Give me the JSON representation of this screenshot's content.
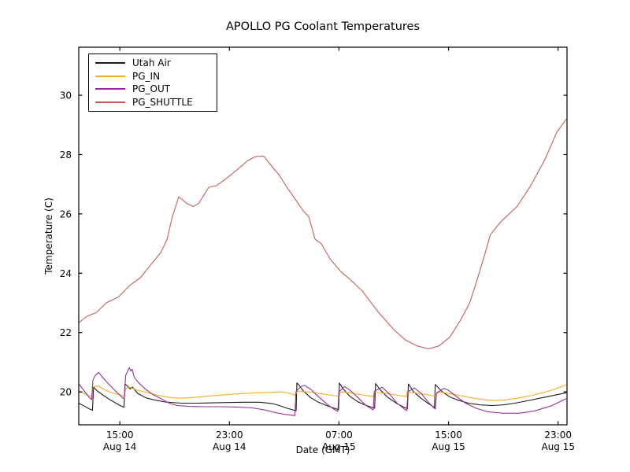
{
  "chart_data": {
    "type": "line",
    "title": "APOLLO PG Coolant Temperatures",
    "xlabel": "Date (GMT)",
    "ylabel": "Temperature (C)",
    "xlim": [
      12.0,
      47.65
    ],
    "ylim": [
      18.89,
      31.62
    ],
    "grid": false,
    "legend_position": "upper-left",
    "frame_color": "#000000",
    "x_ticks": [
      {
        "v": 15,
        "time": "15:00",
        "date": "Aug 14"
      },
      {
        "v": 23,
        "time": "23:00",
        "date": "Aug 14"
      },
      {
        "v": 31,
        "time": "07:00",
        "date": "Aug 15"
      },
      {
        "v": 39,
        "time": "15:00",
        "date": "Aug 15"
      },
      {
        "v": 47,
        "time": "23:00",
        "date": "Aug 15"
      }
    ],
    "y_ticks": [
      {
        "v": 20,
        "label": "20"
      },
      {
        "v": 22,
        "label": "22"
      },
      {
        "v": 24,
        "label": "24"
      },
      {
        "v": 26,
        "label": "26"
      },
      {
        "v": 28,
        "label": "28"
      },
      {
        "v": 30,
        "label": "30"
      }
    ],
    "series": [
      {
        "name": "Utah Air",
        "color": "#1c1c1c",
        "points": [
          [
            12.0,
            19.62
          ],
          [
            12.4,
            19.52
          ],
          [
            12.75,
            19.43
          ],
          [
            13.0,
            19.38
          ],
          [
            13.08,
            20.16
          ],
          [
            13.35,
            20.03
          ],
          [
            13.75,
            19.9
          ],
          [
            14.3,
            19.73
          ],
          [
            14.9,
            19.57
          ],
          [
            15.3,
            19.48
          ],
          [
            15.38,
            20.27
          ],
          [
            15.6,
            20.18
          ],
          [
            15.75,
            20.1
          ],
          [
            15.92,
            20.16
          ],
          [
            16.3,
            19.95
          ],
          [
            16.9,
            19.8
          ],
          [
            17.5,
            19.73
          ],
          [
            18.3,
            19.66
          ],
          [
            19.5,
            19.62
          ],
          [
            20.6,
            19.62
          ],
          [
            21.8,
            19.63
          ],
          [
            22.9,
            19.64
          ],
          [
            24.1,
            19.65
          ],
          [
            25.2,
            19.65
          ],
          [
            26.1,
            19.61
          ],
          [
            26.65,
            19.54
          ],
          [
            27.2,
            19.45
          ],
          [
            27.65,
            19.39
          ],
          [
            27.87,
            19.36
          ],
          [
            27.93,
            20.3
          ],
          [
            28.1,
            20.22
          ],
          [
            28.4,
            20.03
          ],
          [
            28.95,
            19.8
          ],
          [
            29.5,
            19.65
          ],
          [
            30.1,
            19.54
          ],
          [
            30.65,
            19.45
          ],
          [
            30.97,
            19.4
          ],
          [
            31.03,
            20.3
          ],
          [
            31.3,
            20.1
          ],
          [
            31.8,
            19.85
          ],
          [
            32.4,
            19.66
          ],
          [
            32.95,
            19.55
          ],
          [
            33.6,
            19.45
          ],
          [
            33.67,
            20.28
          ],
          [
            34.05,
            20.05
          ],
          [
            34.55,
            19.82
          ],
          [
            35.15,
            19.63
          ],
          [
            35.7,
            19.49
          ],
          [
            36.0,
            19.44
          ],
          [
            36.07,
            20.27
          ],
          [
            36.45,
            20.0
          ],
          [
            37.0,
            19.78
          ],
          [
            37.55,
            19.6
          ],
          [
            37.97,
            19.47
          ],
          [
            38.03,
            20.25
          ],
          [
            38.55,
            20.0
          ],
          [
            39.1,
            19.83
          ],
          [
            39.7,
            19.72
          ],
          [
            40.45,
            19.62
          ],
          [
            41.3,
            19.56
          ],
          [
            42.15,
            19.54
          ],
          [
            43.0,
            19.56
          ],
          [
            43.85,
            19.62
          ],
          [
            44.75,
            19.7
          ],
          [
            45.6,
            19.78
          ],
          [
            46.45,
            19.86
          ],
          [
            47.6,
            19.97
          ]
        ]
      },
      {
        "name": "PG_IN",
        "color": "#ffa928",
        "points": [
          [
            12.0,
            20.04
          ],
          [
            12.35,
            19.95
          ],
          [
            12.7,
            19.88
          ],
          [
            12.95,
            19.84
          ],
          [
            13.04,
            20.17
          ],
          [
            13.4,
            20.2
          ],
          [
            13.85,
            20.08
          ],
          [
            14.4,
            19.97
          ],
          [
            15.0,
            19.9
          ],
          [
            15.3,
            19.85
          ],
          [
            15.45,
            20.12
          ],
          [
            15.7,
            20.16
          ],
          [
            16.3,
            20.05
          ],
          [
            16.9,
            19.99
          ],
          [
            17.45,
            19.92
          ],
          [
            18.05,
            19.86
          ],
          [
            18.8,
            19.8
          ],
          [
            19.5,
            19.79
          ],
          [
            20.35,
            19.81
          ],
          [
            21.2,
            19.85
          ],
          [
            22.35,
            19.89
          ],
          [
            23.5,
            19.93
          ],
          [
            24.65,
            19.96
          ],
          [
            25.8,
            19.98
          ],
          [
            26.8,
            20.0
          ],
          [
            27.4,
            19.95
          ],
          [
            27.82,
            19.89
          ],
          [
            27.95,
            20.02
          ],
          [
            28.4,
            20.01
          ],
          [
            28.95,
            19.99
          ],
          [
            29.8,
            19.93
          ],
          [
            30.65,
            19.87
          ],
          [
            31.04,
            19.85
          ],
          [
            31.1,
            20.0
          ],
          [
            31.8,
            19.97
          ],
          [
            32.7,
            19.9
          ],
          [
            33.5,
            19.84
          ],
          [
            33.58,
            19.99
          ],
          [
            34.4,
            19.95
          ],
          [
            35.25,
            19.89
          ],
          [
            35.92,
            19.84
          ],
          [
            35.99,
            19.99
          ],
          [
            37.0,
            19.94
          ],
          [
            37.85,
            19.87
          ],
          [
            38.1,
            19.85
          ],
          [
            38.17,
            20.0
          ],
          [
            38.7,
            19.97
          ],
          [
            39.55,
            19.9
          ],
          [
            40.45,
            19.82
          ],
          [
            41.3,
            19.75
          ],
          [
            42.15,
            19.71
          ],
          [
            43.0,
            19.72
          ],
          [
            44.05,
            19.79
          ],
          [
            45.0,
            19.87
          ],
          [
            46.0,
            19.98
          ],
          [
            46.8,
            20.1
          ],
          [
            47.6,
            20.24
          ]
        ]
      },
      {
        "name": "PG_OUT",
        "color": "#97309b",
        "points": [
          [
            12.0,
            20.27
          ],
          [
            12.4,
            20.03
          ],
          [
            12.75,
            19.82
          ],
          [
            12.95,
            19.74
          ],
          [
            13.03,
            20.38
          ],
          [
            13.2,
            20.55
          ],
          [
            13.45,
            20.66
          ],
          [
            13.85,
            20.43
          ],
          [
            14.3,
            20.21
          ],
          [
            14.75,
            20.0
          ],
          [
            15.15,
            19.82
          ],
          [
            15.33,
            19.76
          ],
          [
            15.42,
            20.55
          ],
          [
            15.7,
            20.82
          ],
          [
            15.8,
            20.7
          ],
          [
            15.9,
            20.76
          ],
          [
            16.05,
            20.5
          ],
          [
            16.3,
            20.34
          ],
          [
            16.9,
            20.08
          ],
          [
            17.45,
            19.9
          ],
          [
            18.05,
            19.76
          ],
          [
            18.6,
            19.62
          ],
          [
            19.2,
            19.54
          ],
          [
            20.05,
            19.51
          ],
          [
            21.2,
            19.5
          ],
          [
            22.35,
            19.5
          ],
          [
            23.5,
            19.49
          ],
          [
            24.65,
            19.46
          ],
          [
            25.5,
            19.4
          ],
          [
            26.35,
            19.3
          ],
          [
            27.05,
            19.24
          ],
          [
            27.78,
            19.2
          ],
          [
            27.86,
            20.0
          ],
          [
            28.2,
            20.18
          ],
          [
            28.5,
            20.22
          ],
          [
            28.95,
            20.08
          ],
          [
            29.5,
            19.84
          ],
          [
            30.1,
            19.6
          ],
          [
            30.6,
            19.42
          ],
          [
            30.92,
            19.34
          ],
          [
            30.99,
            20.0
          ],
          [
            31.4,
            20.18
          ],
          [
            31.8,
            20.06
          ],
          [
            32.4,
            19.8
          ],
          [
            32.95,
            19.55
          ],
          [
            33.5,
            19.39
          ],
          [
            33.58,
            20.02
          ],
          [
            34.15,
            20.16
          ],
          [
            34.7,
            19.92
          ],
          [
            35.25,
            19.62
          ],
          [
            35.78,
            19.42
          ],
          [
            35.96,
            19.37
          ],
          [
            36.03,
            20.0
          ],
          [
            36.5,
            20.13
          ],
          [
            37.0,
            19.95
          ],
          [
            37.55,
            19.64
          ],
          [
            37.95,
            19.45
          ],
          [
            38.04,
            19.42
          ],
          [
            38.12,
            19.95
          ],
          [
            38.65,
            20.12
          ],
          [
            39.0,
            20.05
          ],
          [
            39.55,
            19.85
          ],
          [
            40.25,
            19.62
          ],
          [
            41.0,
            19.45
          ],
          [
            41.85,
            19.33
          ],
          [
            43.0,
            19.28
          ],
          [
            44.15,
            19.28
          ],
          [
            45.3,
            19.36
          ],
          [
            46.45,
            19.52
          ],
          [
            47.6,
            19.77
          ]
        ]
      },
      {
        "name": "PG_SHUTTLE",
        "color": "#c45f5f",
        "points": [
          [
            12.0,
            22.33
          ],
          [
            12.6,
            22.55
          ],
          [
            13.3,
            22.68
          ],
          [
            14.0,
            23.0
          ],
          [
            14.9,
            23.2
          ],
          [
            15.75,
            23.6
          ],
          [
            16.5,
            23.85
          ],
          [
            17.2,
            24.25
          ],
          [
            18.0,
            24.7
          ],
          [
            18.45,
            25.15
          ],
          [
            18.8,
            25.85
          ],
          [
            19.3,
            26.58
          ],
          [
            19.9,
            26.35
          ],
          [
            20.35,
            26.25
          ],
          [
            20.75,
            26.35
          ],
          [
            21.5,
            26.9
          ],
          [
            22.05,
            26.95
          ],
          [
            22.65,
            27.15
          ],
          [
            23.6,
            27.5
          ],
          [
            24.35,
            27.8
          ],
          [
            24.9,
            27.93
          ],
          [
            25.5,
            27.95
          ],
          [
            26.1,
            27.6
          ],
          [
            26.65,
            27.3
          ],
          [
            27.2,
            26.9
          ],
          [
            27.8,
            26.5
          ],
          [
            28.4,
            26.1
          ],
          [
            28.8,
            25.9
          ],
          [
            29.25,
            25.15
          ],
          [
            29.7,
            25.0
          ],
          [
            30.4,
            24.45
          ],
          [
            31.15,
            24.05
          ],
          [
            31.8,
            23.8
          ],
          [
            32.7,
            23.4
          ],
          [
            33.85,
            22.7
          ],
          [
            35.0,
            22.1
          ],
          [
            35.85,
            21.75
          ],
          [
            36.7,
            21.55
          ],
          [
            37.55,
            21.45
          ],
          [
            38.3,
            21.55
          ],
          [
            39.1,
            21.85
          ],
          [
            39.85,
            22.4
          ],
          [
            40.55,
            23.0
          ],
          [
            41.1,
            23.8
          ],
          [
            41.75,
            24.8
          ],
          [
            42.05,
            25.3
          ],
          [
            42.85,
            25.75
          ],
          [
            44.0,
            26.25
          ],
          [
            45.0,
            26.95
          ],
          [
            46.05,
            27.85
          ],
          [
            46.9,
            28.75
          ],
          [
            47.6,
            29.2
          ]
        ]
      }
    ]
  }
}
